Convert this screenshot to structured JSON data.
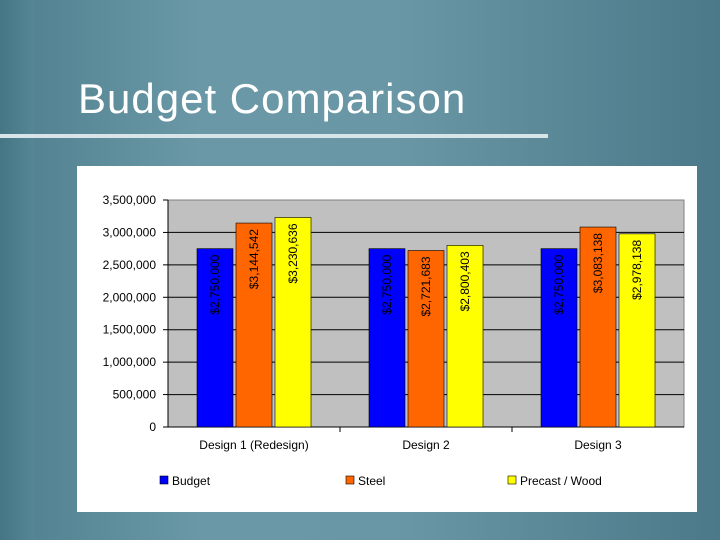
{
  "slide": {
    "title": "Budget Comparison"
  },
  "chart_data": {
    "type": "bar",
    "title": "",
    "xlabel": "",
    "ylabel": "",
    "categories": [
      "Design 1 (Redesign)",
      "Design 2",
      "Design 3"
    ],
    "series": [
      {
        "name": "Budget",
        "values": [
          2750000,
          2750000,
          2750000
        ],
        "labels": [
          "$2,750,000",
          "$2,750,000",
          "$2,750,000"
        ],
        "color": "#0000ff"
      },
      {
        "name": "Steel",
        "values": [
          3144542,
          2721683,
          3083138
        ],
        "labels": [
          "$3,144,542",
          "$2,721,683",
          "$3,083,138"
        ],
        "color": "#ff6600"
      },
      {
        "name": "Precast / Wood",
        "values": [
          3230636,
          2800403,
          2978138
        ],
        "labels": [
          "$3,230,636",
          "$2,800,403",
          "$2,978,138"
        ],
        "color": "#ffff00"
      }
    ],
    "y_ticks": [
      "0",
      "500,000",
      "1,000,000",
      "1,500,000",
      "2,000,000",
      "2,500,000",
      "3,000,000",
      "3,500,000"
    ],
    "y_tick_values": [
      0,
      500000,
      1000000,
      1500000,
      2000000,
      2500000,
      3000000,
      3500000
    ],
    "ylim": [
      0,
      3500000
    ],
    "grid": true,
    "legend": {
      "position": "bottom",
      "items": [
        "Budget",
        "Steel",
        "Precast / Wood"
      ]
    },
    "plot_background": "#c0c0c0"
  }
}
